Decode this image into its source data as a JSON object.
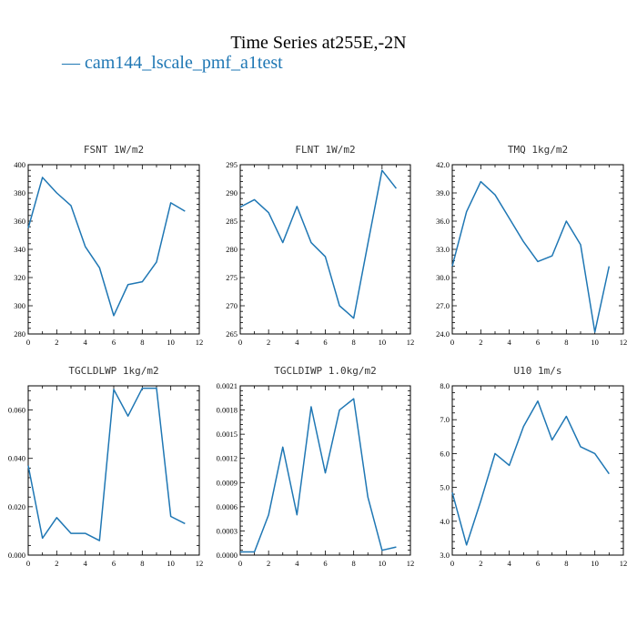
{
  "header": {
    "title": "Time Series at255E,-2N",
    "legend_label": "— cam144_lscale_pmf_a1test"
  },
  "colors": {
    "series": "#1f77b4",
    "axis": "#000000"
  },
  "chart_data": [
    {
      "type": "line",
      "title": "FSNT   1W/m2",
      "x": [
        0,
        1,
        2,
        3,
        4,
        5,
        6,
        7,
        8,
        9,
        10,
        11
      ],
      "series": [
        {
          "values": [
            355,
            391,
            380,
            371,
            342,
            327,
            293,
            315,
            317,
            331,
            373,
            367
          ]
        }
      ],
      "xlim": [
        0,
        12
      ],
      "ylim": [
        280,
        400
      ],
      "xticks": [
        "0",
        "2",
        "4",
        "6",
        "8",
        "10",
        "12"
      ],
      "yticks": [
        "280",
        "300",
        "320",
        "340",
        "360",
        "380",
        "400"
      ],
      "ytick_values": [
        280,
        300,
        320,
        340,
        360,
        380,
        400
      ]
    },
    {
      "type": "line",
      "title": "FLNT   1W/m2",
      "x": [
        0,
        1,
        2,
        3,
        4,
        5,
        6,
        7,
        8,
        9,
        10,
        11
      ],
      "series": [
        {
          "values": [
            287.5,
            288.8,
            286.5,
            281.2,
            287.6,
            281.2,
            278.7,
            270.0,
            267.8,
            281.0,
            294.0,
            290.8
          ]
        }
      ],
      "xlim": [
        0,
        12
      ],
      "ylim": [
        265,
        295
      ],
      "xticks": [
        "0",
        "2",
        "4",
        "6",
        "8",
        "10",
        "12"
      ],
      "yticks": [
        "265",
        "270",
        "275",
        "280",
        "285",
        "290",
        "295"
      ],
      "ytick_values": [
        265,
        270,
        275,
        280,
        285,
        290,
        295
      ]
    },
    {
      "type": "line",
      "title": "TMQ   1kg/m2",
      "x": [
        0,
        1,
        2,
        3,
        4,
        5,
        6,
        7,
        8,
        9,
        10,
        11
      ],
      "series": [
        {
          "values": [
            31.2,
            37.0,
            40.2,
            38.8,
            36.3,
            33.8,
            31.7,
            32.3,
            36.0,
            33.5,
            24.2,
            31.2
          ]
        }
      ],
      "xlim": [
        0,
        12
      ],
      "ylim": [
        24,
        42
      ],
      "xticks": [
        "0",
        "2",
        "4",
        "6",
        "8",
        "10",
        "12"
      ],
      "yticks": [
        "24.0",
        "27.0",
        "30.0",
        "33.0",
        "36.0",
        "39.0",
        "42.0"
      ],
      "ytick_values": [
        24,
        27,
        30,
        33,
        36,
        39,
        42
      ]
    },
    {
      "type": "line",
      "title": "TGCLDLWP   1kg/m2",
      "x": [
        0,
        1,
        2,
        3,
        4,
        5,
        6,
        7,
        8,
        9,
        10,
        11
      ],
      "series": [
        {
          "values": [
            0.037,
            0.007,
            0.0155,
            0.009,
            0.009,
            0.006,
            0.0685,
            0.0575,
            0.069,
            0.069,
            0.016,
            0.013
          ]
        }
      ],
      "xlim": [
        0,
        12
      ],
      "ylim": [
        0,
        0.07
      ],
      "xticks": [
        "0",
        "2",
        "4",
        "6",
        "8",
        "10",
        "12"
      ],
      "yticks": [
        "0.000",
        "0.020",
        "0.040",
        "0.060"
      ],
      "ytick_values": [
        0,
        0.02,
        0.04,
        0.06
      ]
    },
    {
      "type": "line",
      "title": "TGCLDIWP   1.0kg/m2",
      "x": [
        0,
        1,
        2,
        3,
        4,
        5,
        6,
        7,
        8,
        9,
        10,
        11
      ],
      "series": [
        {
          "values": [
            4e-05,
            4e-05,
            0.0005,
            0.00134,
            0.0005,
            0.00184,
            0.00102,
            0.0018,
            0.00194,
            0.00072,
            6e-05,
            0.0001
          ]
        }
      ],
      "xlim": [
        0,
        12
      ],
      "ylim": [
        0,
        0.0021
      ],
      "xticks": [
        "0",
        "2",
        "4",
        "6",
        "8",
        "10",
        "12"
      ],
      "yticks": [
        "0.0000",
        "0.0003",
        "0.0006",
        "0.0009",
        "0.0012",
        "0.0015",
        "0.0018",
        "0.0021"
      ],
      "ytick_values": [
        0,
        0.0003,
        0.0006,
        0.0009,
        0.0012,
        0.0015,
        0.0018,
        0.0021
      ]
    },
    {
      "type": "line",
      "title": "U10   1m/s",
      "x": [
        0,
        1,
        2,
        3,
        4,
        5,
        6,
        7,
        8,
        9,
        10,
        11
      ],
      "series": [
        {
          "values": [
            4.85,
            3.3,
            4.6,
            6.0,
            5.65,
            6.8,
            7.55,
            6.4,
            7.1,
            6.2,
            6.0,
            5.4
          ]
        }
      ],
      "xlim": [
        0,
        12
      ],
      "ylim": [
        3,
        8
      ],
      "xticks": [
        "0",
        "2",
        "4",
        "6",
        "8",
        "10",
        "12"
      ],
      "yticks": [
        "3.0",
        "4.0",
        "5.0",
        "6.0",
        "7.0",
        "8.0"
      ],
      "ytick_values": [
        3,
        4,
        5,
        6,
        7,
        8
      ]
    }
  ]
}
